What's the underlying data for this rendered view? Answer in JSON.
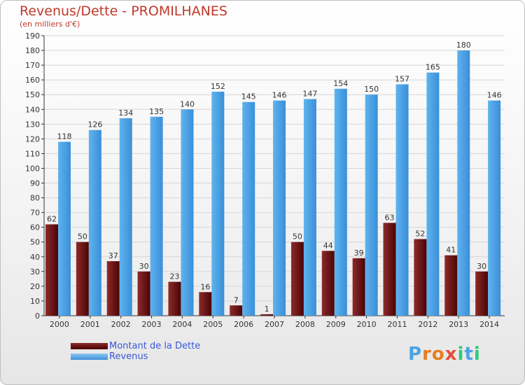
{
  "title": "Revenus/Dette - PROMILHANES",
  "subtitle": "(en milliers d'€)",
  "colors": {
    "dette": "#6e1212",
    "revenus": "#4aa3e6",
    "title": "#c0392b",
    "legend_text": "#3a57d6"
  },
  "legend": {
    "dette_label": "Montant de la Dette",
    "revenus_label": "Revenus"
  },
  "logo": {
    "text": "Proxiti"
  },
  "chart_data": {
    "type": "bar",
    "categories": [
      "2000",
      "2001",
      "2002",
      "2003",
      "2004",
      "2005",
      "2006",
      "2007",
      "2008",
      "2009",
      "2010",
      "2011",
      "2012",
      "2013",
      "2014"
    ],
    "series": [
      {
        "name": "Montant de la Dette",
        "values": [
          62,
          50,
          37,
          30,
          23,
          16,
          7,
          1,
          50,
          44,
          39,
          63,
          52,
          41,
          30
        ]
      },
      {
        "name": "Revenus",
        "values": [
          118,
          126,
          134,
          135,
          140,
          152,
          145,
          146,
          147,
          154,
          150,
          157,
          165,
          180,
          146
        ]
      }
    ],
    "ylim": [
      0,
      190
    ],
    "yticks": [
      0,
      10,
      20,
      30,
      40,
      50,
      60,
      70,
      80,
      90,
      100,
      110,
      120,
      130,
      140,
      150,
      160,
      170,
      180,
      190
    ],
    "grid": true,
    "legend_position": "bottom-left"
  }
}
